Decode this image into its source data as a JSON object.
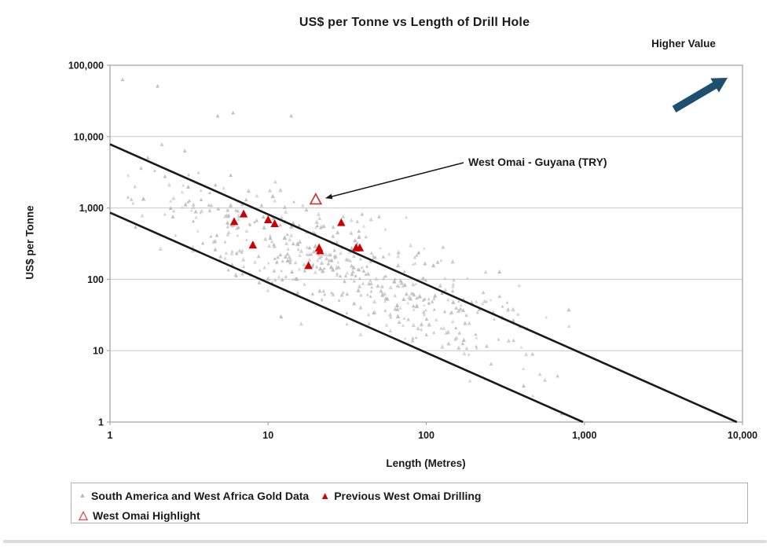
{
  "chart": {
    "title": "US$ per Tonne vs Length of Drill Hole",
    "higher_value_label": "Higher Value",
    "x_axis": {
      "title": "Length (Metres)",
      "ticks": [
        "1",
        "10",
        "100",
        "1,000",
        "10,000"
      ]
    },
    "y_axis": {
      "title": "US$ per Tonne",
      "ticks": [
        "1",
        "10",
        "100",
        "1,000",
        "10,000",
        "100,000"
      ]
    },
    "annotation_label": "West Omai - Guyana (TRY)",
    "legend": {
      "items": [
        {
          "label": "South America and West Africa Gold Data",
          "marker": "small-gray-triangle"
        },
        {
          "label": "Previous West Omai Drilling",
          "marker": "red-filled-triangle"
        },
        {
          "label": "West Omai Highlight",
          "marker": "red-open-triangle"
        }
      ]
    },
    "colors": {
      "red": "#cc0000",
      "highlight_red": "#cc3333",
      "gray_point": "#b9b9b9",
      "trend_line": "#1a1a1a",
      "gridline": "#c9c9c9",
      "plot_border": "#a6a6a6",
      "arrow_blue": "#1d4f6e",
      "text": "#1a1a1a",
      "divider": "#dcdcdc"
    }
  },
  "chart_data": {
    "type": "scatter",
    "x_scale": "log",
    "y_scale": "log",
    "xlim": [
      1,
      10000
    ],
    "ylim": [
      1,
      100000
    ],
    "xlabel": "Length (Metres)",
    "ylabel": "US$ per Tonne",
    "title": "US$ per Tonne vs Length of Drill Hole",
    "grid": "horizontal-major-only",
    "legend_position": "bottom",
    "series": [
      {
        "name": "South America and West Africa Gold Data",
        "marker": "small-triangle",
        "color": "#b9b9b9",
        "note": "dense cloud of ~550 points between the two power-law trend lines",
        "distribution": {
          "count": 550,
          "seed": 7,
          "log_x_mean": 1.5,
          "log_x_sd": 0.62,
          "log_x_range": [
            0.1,
            2.95
          ],
          "log_y_intercept": 3.37,
          "log_y_slope": -0.82,
          "log_y_noise_sd": 0.38,
          "log_y_range": [
            0.12,
            4.86
          ]
        },
        "outlier_points": [
          [
            1.2,
            63000
          ],
          [
            2,
            51000
          ],
          [
            4.8,
            19500
          ],
          [
            6,
            21500
          ],
          [
            14,
            19500
          ]
        ]
      },
      {
        "name": "Previous West Omai Drilling",
        "marker": "triangle",
        "color": "#cc0000",
        "points": [
          [
            6.1,
            640
          ],
          [
            7,
            820
          ],
          [
            10,
            680
          ],
          [
            11,
            600
          ],
          [
            8,
            300
          ],
          [
            18,
            155
          ],
          [
            21,
            275
          ],
          [
            21.3,
            250
          ],
          [
            29,
            620
          ],
          [
            36,
            275
          ],
          [
            38,
            275
          ]
        ]
      },
      {
        "name": "West Omai Highlight",
        "marker": "open-triangle",
        "color": "#cc3333",
        "points": [
          [
            20,
            1300
          ]
        ]
      }
    ],
    "trend_lines": [
      {
        "name": "upper-bound-line",
        "from": [
          1,
          7800
        ],
        "to": [
          9200,
          1
        ]
      },
      {
        "name": "lower-bound-line",
        "from": [
          1,
          860
        ],
        "to": [
          980,
          1
        ]
      }
    ],
    "annotation": {
      "text": "West Omai - Guyana (TRY)",
      "points_to": [
        20,
        1300
      ]
    },
    "higher_value_arrow": {
      "label": "Higher Value",
      "direction": "up-right"
    }
  }
}
